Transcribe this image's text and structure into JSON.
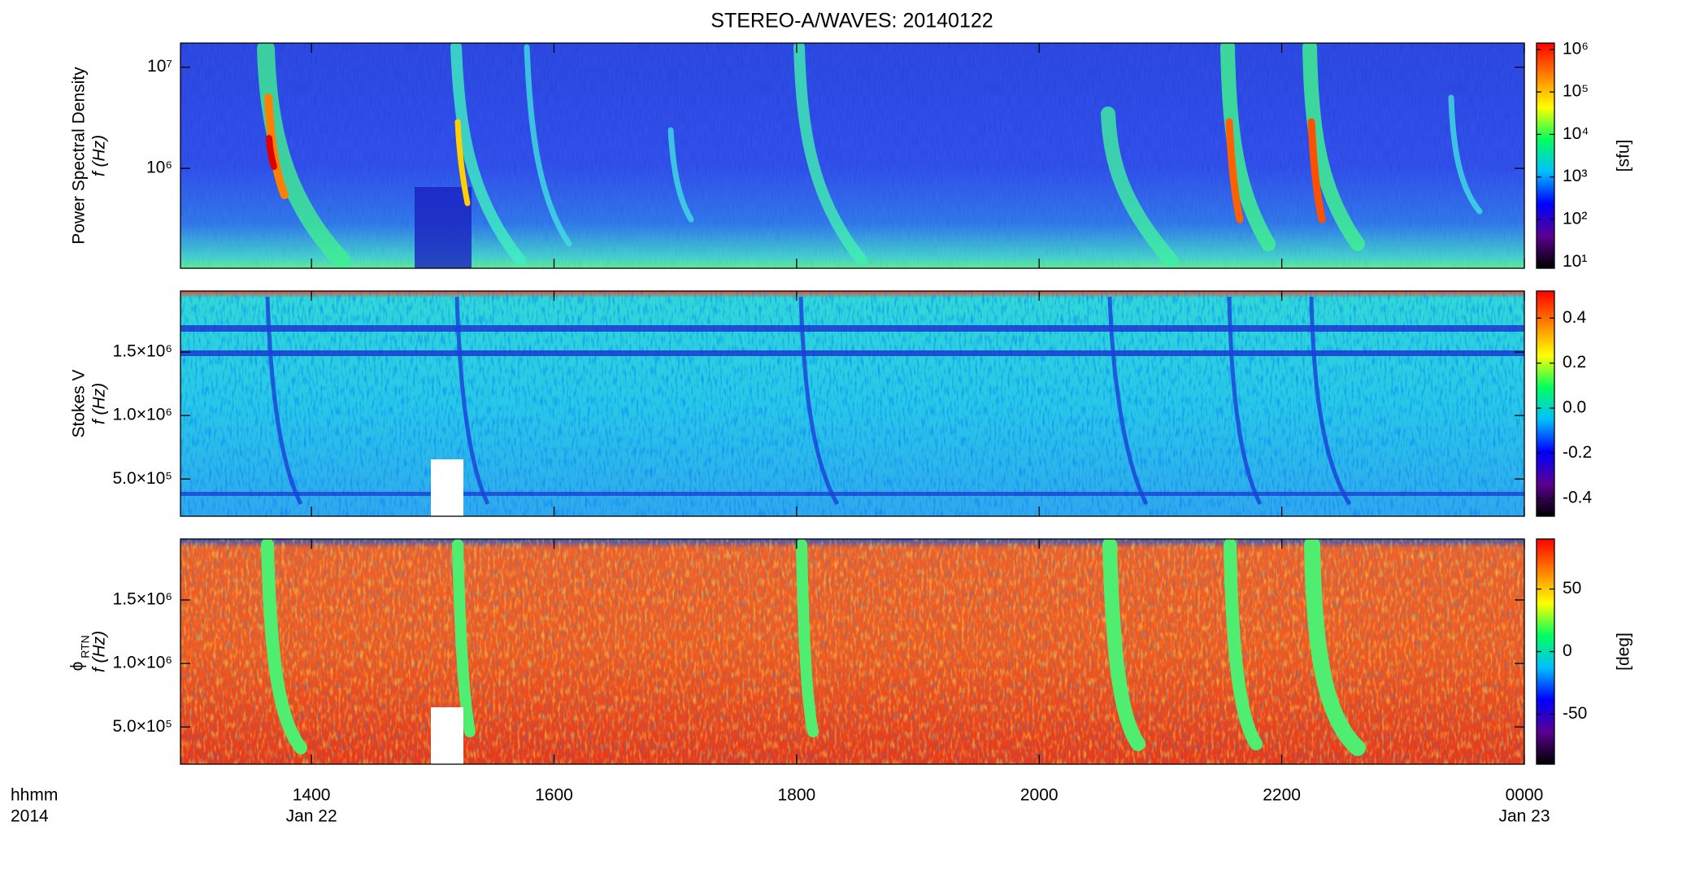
{
  "chart_data": [
    {
      "type": "spectrogram",
      "title": "STEREO-A/WAVES: 20140122",
      "ylabel": "Power Spectral Density",
      "ylabel_unit": "f (Hz)",
      "yscale": "log",
      "ylim": [
        103000,
        17300000
      ],
      "yticks": [
        {
          "value": 1000000,
          "label": "10⁶"
        },
        {
          "value": 10000000,
          "label": "10⁷"
        }
      ],
      "colorbar": {
        "label": "[sfu]",
        "scale": "log",
        "lim": [
          7.1,
          1410000
        ],
        "ticks": [
          {
            "value": 10,
            "label": "10¹"
          },
          {
            "value": 100,
            "label": "10²"
          },
          {
            "value": 1000,
            "label": "10³"
          },
          {
            "value": 10000,
            "label": "10⁴"
          },
          {
            "value": 100000,
            "label": "10⁵"
          },
          {
            "value": 1000000,
            "label": "10⁶"
          }
        ],
        "colors": [
          "#000000",
          "#5a0090",
          "#0000ff",
          "#00bfff",
          "#00ff60",
          "#ffff00",
          "#ff8000",
          "#ff0000"
        ]
      }
    },
    {
      "type": "spectrogram",
      "ylabel": "Stokes V",
      "ylabel_unit": "f (Hz)",
      "yscale": "linear",
      "ylim": [
        207000,
        1980000
      ],
      "yticks": [
        {
          "value": 500000,
          "label": "5.0×10⁵"
        },
        {
          "value": 1000000,
          "label": "1.0×10⁶"
        },
        {
          "value": 1500000,
          "label": "1.5×10⁶"
        }
      ],
      "colorbar": {
        "scale": "linear",
        "lim": [
          -0.48,
          0.52
        ],
        "ticks": [
          -0.4,
          -0.2,
          {
            "value": 0,
            "label": "0.0"
          },
          0.2,
          0.4
        ],
        "colors": [
          "#000000",
          "#5a0090",
          "#0000ff",
          "#00bfff",
          "#00ff60",
          "#ffff00",
          "#ff8000",
          "#ff0000"
        ]
      }
    },
    {
      "type": "spectrogram",
      "ylabel_symbol": "ϕ",
      "ylabel_subscript": "RTN",
      "ylabel_unit": "f (Hz)",
      "yscale": "linear",
      "ylim": [
        207000,
        1980000
      ],
      "yticks": [
        {
          "value": 500000,
          "label": "5.0×10⁵"
        },
        {
          "value": 1000000,
          "label": "1.0×10⁶"
        },
        {
          "value": 1500000,
          "label": "1.5×10⁶"
        }
      ],
      "colorbar": {
        "label": "[deg]",
        "scale": "linear",
        "lim": [
          -90,
          90
        ],
        "ticks": [
          -50,
          0,
          50
        ],
        "colors": [
          "#000000",
          "#5a0090",
          "#0000ff",
          "#00bfff",
          "#00ff60",
          "#ffff00",
          "#ff8000",
          "#ff0000"
        ]
      },
      "xlim": [
        12.92,
        24
      ],
      "xticks": [
        {
          "value": 14,
          "label": "1400"
        },
        {
          "value": 16,
          "label": "1600"
        },
        {
          "value": 18,
          "label": "1800"
        },
        {
          "value": 20,
          "label": "2000"
        },
        {
          "value": 22,
          "label": "2200"
        },
        {
          "value": 24,
          "label": "0000"
        }
      ],
      "date_labels": [
        {
          "value": 14,
          "label": "Jan 22"
        },
        {
          "value": 24,
          "label": "Jan 23"
        }
      ],
      "xlabel_lines": [
        "hhmm",
        "2014"
      ]
    }
  ]
}
